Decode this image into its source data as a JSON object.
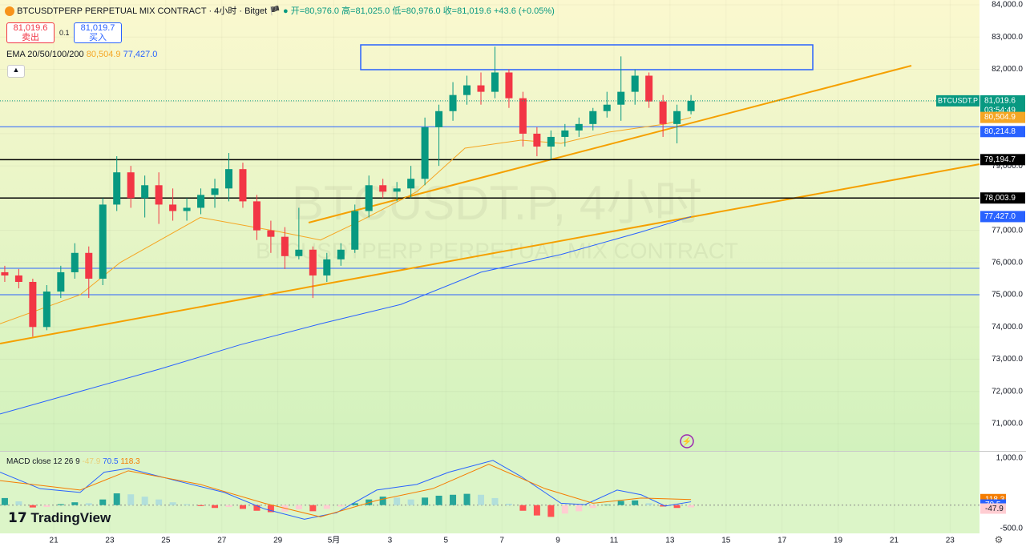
{
  "header": {
    "symbol": "BTCUSDTPERP PERPETUAL MIX CONTRACT · 4小时 · Bitget",
    "ohlc_text": [
      "开=80,976.0",
      "高=81,025.0",
      "低=80,976.0",
      "收=81,019.6",
      "+43.6 (+0.05%)"
    ],
    "sell": {
      "price": "81,019.6",
      "label": "卖出"
    },
    "spread": "0.1",
    "buy": {
      "price": "81,019.7",
      "label": "买入"
    },
    "ema_label": "EMA 20/50/100/200",
    "watermark": [
      "BTCUSDT.P, 4小时",
      "BTCUSDTPERP PERPETUAL MIX CONTRACT"
    ],
    "logo": "TradingView"
  },
  "chart_data": {
    "type": "candlestick",
    "up_color": "#089981",
    "down_color": "#f23645",
    "x": [
      19.25,
      19.75,
      20.25,
      20.75,
      21.25,
      21.75,
      22.25,
      22.75,
      23.25,
      23.75,
      24.25,
      24.75,
      25.25,
      25.75,
      26.25,
      26.75,
      27.25,
      27.75,
      28.25,
      28.75,
      29.25,
      29.75,
      30.25,
      30.75,
      31.25,
      31.75,
      32.25,
      32.75,
      33.25,
      33.75,
      34.25,
      34.75,
      35.25,
      35.75,
      36.25,
      36.75,
      37.25,
      37.75,
      38.25,
      38.75,
      39.25,
      39.75,
      40.25,
      40.75,
      41.25,
      41.75,
      42.25,
      42.75,
      43.25,
      43.75
    ],
    "open": [
      75700,
      75600,
      75400,
      74000,
      75100,
      75700,
      76300,
      75500,
      77800,
      78800,
      78000,
      78400,
      77800,
      77600,
      77700,
      78100,
      78300,
      78900,
      77900,
      77000,
      76800,
      76200,
      76400,
      75600,
      76100,
      76400,
      77600,
      78400,
      78200,
      78300,
      78600,
      80200,
      80700,
      81200,
      81500,
      81300,
      81900,
      81100,
      80000,
      79600,
      79900,
      80100,
      80300,
      80700,
      80900,
      81300,
      81800,
      81000,
      80300,
      80700
    ],
    "high": [
      75900,
      75800,
      75500,
      75300,
      75900,
      76600,
      76500,
      78000,
      79300,
      79000,
      78700,
      78800,
      78300,
      78000,
      78300,
      78600,
      79400,
      79100,
      78100,
      77300,
      77100,
      77700,
      76500,
      76300,
      76600,
      77800,
      78700,
      78600,
      78500,
      79000,
      80500,
      80900,
      81600,
      81800,
      81900,
      82700,
      82000,
      81300,
      80200,
      80100,
      80300,
      80500,
      80800,
      81300,
      82400,
      82000,
      81900,
      81200,
      80900,
      81200
    ],
    "low": [
      75400,
      75200,
      73700,
      73900,
      74900,
      75500,
      74900,
      75300,
      77600,
      77700,
      77400,
      77200,
      77300,
      77300,
      77500,
      77700,
      77900,
      77700,
      76700,
      76300,
      75800,
      76100,
      74900,
      75400,
      75900,
      76300,
      77400,
      78000,
      77900,
      78000,
      78400,
      79000,
      80400,
      80900,
      80900,
      81100,
      80800,
      79600,
      79300,
      79200,
      79600,
      79900,
      80100,
      80500,
      80400,
      80900,
      80800,
      79900,
      79700,
      80600
    ],
    "close": [
      75600,
      75400,
      74000,
      75100,
      75700,
      76300,
      75500,
      77800,
      78800,
      78000,
      78400,
      77800,
      77600,
      77700,
      78100,
      78300,
      78900,
      77900,
      77000,
      76800,
      76200,
      76400,
      75600,
      76100,
      76400,
      77600,
      78400,
      78200,
      78300,
      78600,
      80200,
      80700,
      81200,
      81500,
      81300,
      81900,
      81100,
      80000,
      79600,
      79900,
      80100,
      80300,
      80700,
      80900,
      81300,
      81800,
      81000,
      80300,
      80700,
      81019.6
    ],
    "xlim": [
      19.08,
      54.05
    ],
    "xticks": [
      {
        "value": 21,
        "label": "21"
      },
      {
        "value": 23,
        "label": "23"
      },
      {
        "value": 25,
        "label": "25"
      },
      {
        "value": 27,
        "label": "27"
      },
      {
        "value": 29,
        "label": "29"
      },
      {
        "value": 31,
        "label": "5月"
      },
      {
        "value": 33,
        "label": "3"
      },
      {
        "value": 35,
        "label": "5"
      },
      {
        "value": 37,
        "label": "7"
      },
      {
        "value": 39,
        "label": "9"
      },
      {
        "value": 41,
        "label": "11"
      },
      {
        "value": 43,
        "label": "13"
      },
      {
        "value": 45,
        "label": "15"
      },
      {
        "value": 47,
        "label": "17"
      },
      {
        "value": 49,
        "label": "19"
      },
      {
        "value": 51,
        "label": "21"
      },
      {
        "value": 53,
        "label": "23"
      }
    ],
    "ylim": [
      70155,
      84149
    ],
    "yticks": [
      {
        "value": 84000,
        "label": "84,000.0"
      },
      {
        "value": 83000,
        "label": "83,000.0"
      },
      {
        "value": 82000,
        "label": "82,000.0"
      },
      {
        "value": 81000,
        "label": "81,000.0"
      },
      {
        "value": 80000,
        "label": "80,000.0"
      },
      {
        "value": 79000,
        "label": "79,000.0"
      },
      {
        "value": 78000,
        "label": "78,000.0"
      },
      {
        "value": 77000,
        "label": "77,000.0"
      },
      {
        "value": 76000,
        "label": "76,000.0"
      },
      {
        "value": 75000,
        "label": "75,000.0"
      },
      {
        "value": 74000,
        "label": "74,000.0"
      },
      {
        "value": 73000,
        "label": "73,000.0"
      },
      {
        "value": 72000,
        "label": "72,000.0"
      },
      {
        "value": 71000,
        "label": "71,000.0"
      }
    ],
    "series": [
      {
        "color": "#f5a623",
        "x": [
          19.08,
          21.94,
          23.37,
          26.23,
          29.09,
          30.52,
          31.96,
          33.96,
          35.68,
          37.68,
          39.11,
          40.83,
          42.83,
          43.75
        ],
        "values": [
          74100,
          75000,
          76000,
          77400,
          76950,
          76700,
          77300,
          78200,
          79550,
          79800,
          79700,
          80050,
          80300,
          80504.9
        ],
        "last_label": "80,504.9"
      },
      {
        "color": "#2962ff",
        "x": [
          19.08,
          21.94,
          24.8,
          27.66,
          30.53,
          33.39,
          36.25,
          39.11,
          41.97,
          43.75
        ],
        "values": [
          71300,
          72000,
          72700,
          73450,
          74100,
          74700,
          75700,
          76250,
          76950,
          77427
        ],
        "last_label": "77,427.0"
      }
    ],
    "last_price": {
      "value": 81019.6,
      "label": "81,019.6",
      "name": "BTCUSDT.P",
      "countdown": "03:54:49",
      "color": "#089981"
    },
    "levels": [
      {
        "value": 80214.8,
        "label": "80,214.8",
        "color": "#2962ff"
      },
      {
        "value": 79194.7,
        "label": "79,194.7",
        "color": "#000000"
      },
      {
        "value": 78003.9,
        "label": "78,003.9",
        "color": "#000000"
      }
    ],
    "macd": {
      "label": "MACD close 12 26 9",
      "ylim": [
        -584,
        1119
      ],
      "yticks": [
        {
          "value": 1000,
          "label": "1,000.0"
        },
        {
          "value": -500,
          "label": "-500.0"
        }
      ],
      "histogram": [
        150,
        80,
        -50,
        -40,
        20,
        60,
        40,
        120,
        250,
        230,
        180,
        120,
        60,
        20,
        -20,
        -60,
        -40,
        -80,
        -120,
        -150,
        -140,
        -90,
        -130,
        -80,
        -30,
        40,
        120,
        180,
        160,
        120,
        160,
        200,
        220,
        240,
        220,
        150,
        30,
        -120,
        -220,
        -250,
        -180,
        -130,
        -60,
        10,
        90,
        100,
        40,
        -30,
        -60,
        -47.9
      ],
      "histogram_label": "-47.9",
      "macd_line": {
        "color": "#2962ff",
        "x": [
          19.08,
          20.51,
          21.94,
          22.8,
          23.66,
          25.37,
          27.09,
          28.52,
          29.95,
          31.1,
          32.53,
          33.96,
          35.1,
          36.68,
          37.68,
          39.11,
          39.97,
          41.11,
          41.97,
          42.83,
          43.75
        ],
        "values": [
          700,
          350,
          270,
          700,
          780,
          520,
          270,
          -80,
          -300,
          -160,
          320,
          440,
          700,
          950,
          610,
          40,
          10,
          320,
          220,
          -20,
          70.5
        ],
        "last_label": "70.5"
      },
      "signal_line": {
        "color": "#f57c00",
        "x": [
          19.08,
          21.94,
          23.66,
          26.23,
          28.52,
          30.52,
          32.53,
          34.53,
          36.53,
          38.54,
          40.25,
          41.97,
          43.75
        ],
        "values": [
          520,
          320,
          730,
          440,
          40,
          -250,
          100,
          350,
          870,
          350,
          40,
          150,
          118.3
        ],
        "last_label": "118.3"
      }
    }
  }
}
